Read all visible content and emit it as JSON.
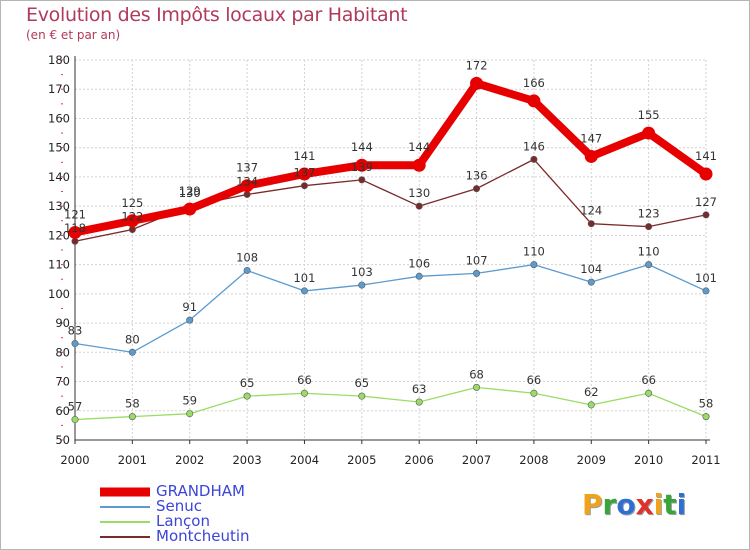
{
  "title": "Evolution des Impôts locaux par Habitant",
  "subtitle": "(en € et par an)",
  "logo": {
    "text": "Proxiti",
    "letters": [
      {
        "ch": "P",
        "color": "#f0a21a"
      },
      {
        "ch": "r",
        "color": "#3aa33a"
      },
      {
        "ch": "o",
        "color": "#2f6fd1"
      },
      {
        "ch": "x",
        "color": "#e0312a"
      },
      {
        "ch": "i",
        "color": "#f0a21a"
      },
      {
        "ch": "t",
        "color": "#3aa33a"
      },
      {
        "ch": "i",
        "color": "#2f6fd1"
      }
    ]
  },
  "chart_data": {
    "type": "line",
    "title": "Evolution des Impôts locaux par Habitant",
    "subtitle": "(en € et par an)",
    "xlabel": "",
    "ylabel": "",
    "ylim": [
      50,
      180
    ],
    "yticks": [
      50,
      60,
      70,
      80,
      90,
      100,
      110,
      120,
      130,
      140,
      150,
      160,
      170,
      180
    ],
    "grid": true,
    "legend": "bottom-left",
    "x": [
      "2000",
      "2001",
      "2002",
      "2003",
      "2004",
      "2005",
      "2006",
      "2007",
      "2008",
      "2009",
      "2010",
      "2011"
    ],
    "series": [
      {
        "name": "GRANDHAM",
        "color": "#e60000",
        "values": [
          121,
          125,
          129,
          137,
          141,
          144,
          144,
          172,
          166,
          147,
          155,
          141
        ]
      },
      {
        "name": "Senuc",
        "color": "#5b9bd0",
        "values": [
          83,
          80,
          91,
          108,
          101,
          103,
          106,
          107,
          110,
          104,
          110,
          101
        ]
      },
      {
        "name": "Lançon",
        "color": "#99dd66",
        "values": [
          57,
          58,
          59,
          65,
          66,
          65,
          63,
          68,
          66,
          62,
          66,
          58
        ]
      },
      {
        "name": "Montcheutin",
        "color": "#7a2a2a",
        "values": [
          118,
          122,
          130,
          134,
          137,
          139,
          130,
          136,
          146,
          124,
          123,
          127
        ]
      }
    ]
  }
}
